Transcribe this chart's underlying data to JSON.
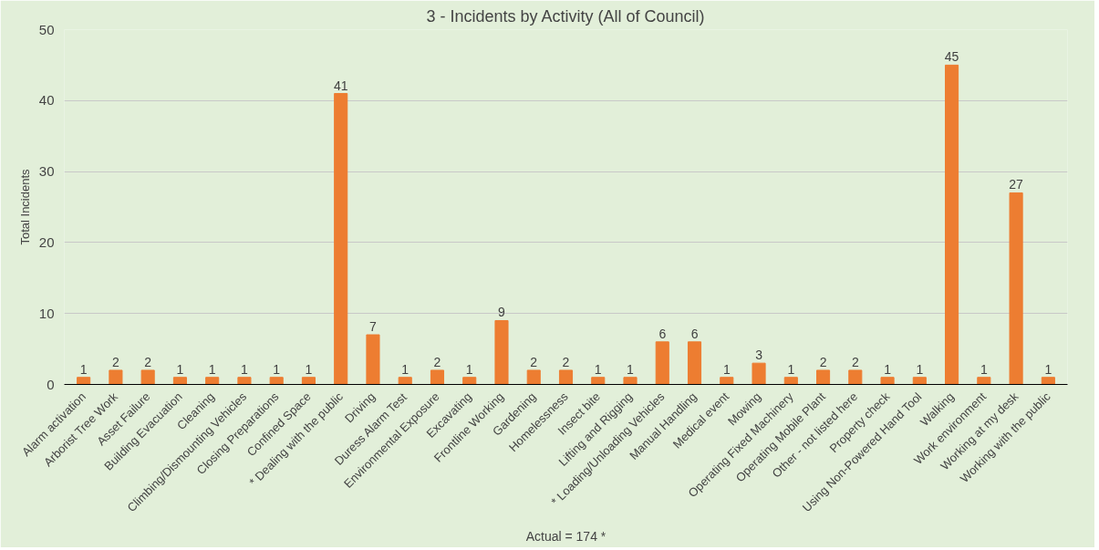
{
  "chart_data": {
    "type": "bar",
    "title": "3 - Incidents by Activity (All of Council)",
    "ylabel": "Total Incidents",
    "categories": [
      "Alarm activation",
      "Arborist Tree Work",
      "Asset Failure",
      "Building Evacuation",
      "Cleaning",
      "Climbing/Dismounting Vehicles",
      "Closing Preparations",
      "Confined Space",
      "* Dealing with the public",
      "Driving",
      "Duress Alarm Test",
      "Environmental Exposure",
      "Excavating",
      "Frontline Working",
      "Gardening",
      "Homelessness",
      "Insect bite",
      "Lifting and Rigging",
      "* Loading/Unloading Vehicles",
      "Manual Handling",
      "Medical event",
      "Mowing",
      "Operating Fixed Machinery",
      "Operating Mobile Plant",
      "Other - not listed here",
      "Property check",
      "Using Non-Powered Hand Tool",
      "Walking",
      "Work environment",
      "Working at my desk",
      "Working with the public"
    ],
    "values": [
      1,
      2,
      2,
      1,
      1,
      1,
      1,
      1,
      41,
      7,
      1,
      2,
      1,
      9,
      2,
      2,
      1,
      1,
      6,
      6,
      1,
      3,
      1,
      2,
      2,
      1,
      1,
      45,
      1,
      27,
      1
    ],
    "color": "#ed7d31",
    "ylim": [
      0,
      50
    ],
    "yticks": [
      0,
      10,
      20,
      30,
      40,
      50
    ],
    "grid": "y",
    "data_labels": true,
    "annotations": [
      "Actual = 174 *"
    ]
  }
}
